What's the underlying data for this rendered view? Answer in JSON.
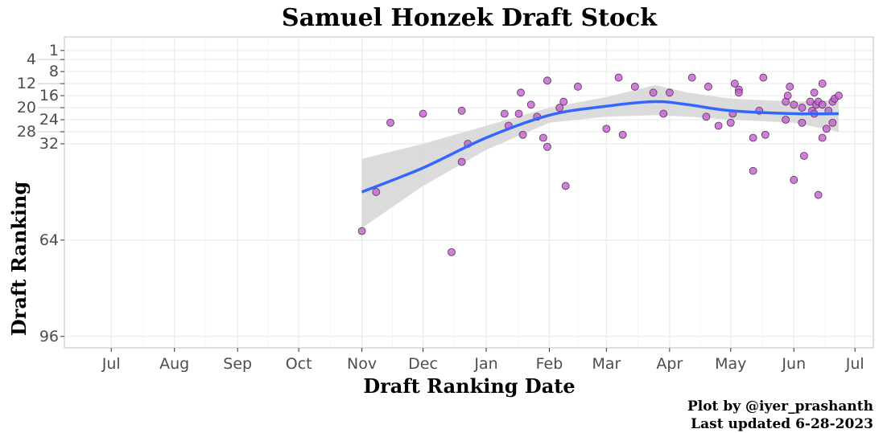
{
  "chart_data": {
    "type": "scatter",
    "title": "Samuel Honzek Draft Stock",
    "xlabel": "Draft Ranking Date",
    "ylabel": "Draft Ranking",
    "caption": [
      "Plot by @iyer_prashanth",
      "Last updated 6-28-2023"
    ],
    "x_ticks": [
      {
        "date": "2022-07-01",
        "label": "Jul"
      },
      {
        "date": "2022-08-01",
        "label": "Aug"
      },
      {
        "date": "2022-09-01",
        "label": "Sep"
      },
      {
        "date": "2022-10-01",
        "label": "Oct"
      },
      {
        "date": "2022-11-01",
        "label": "Nov"
      },
      {
        "date": "2022-12-01",
        "label": "Dec"
      },
      {
        "date": "2023-01-01",
        "label": "Jan"
      },
      {
        "date": "2023-02-01",
        "label": "Feb"
      },
      {
        "date": "2023-03-01",
        "label": "Mar"
      },
      {
        "date": "2023-04-01",
        "label": "Apr"
      },
      {
        "date": "2023-05-01",
        "label": "May"
      },
      {
        "date": "2023-06-01",
        "label": "Jun"
      },
      {
        "date": "2023-07-01",
        "label": "Jul"
      }
    ],
    "y_ticks": [
      1,
      4,
      8,
      12,
      16,
      20,
      24,
      28,
      32,
      64,
      96
    ],
    "xlim": [
      "2022-06-08",
      "2023-07-10"
    ],
    "ylim": [
      -3.5,
      99.8
    ],
    "y_reversed": true,
    "grid": true,
    "colors": {
      "points": "#c061cb",
      "point_edge": "#5a2a5f",
      "smooth": "#3366ff",
      "band": "#d9d9d9",
      "grid": "#ebebeb"
    },
    "points": [
      [
        "2022-11-01",
        61
      ],
      [
        "2022-11-08",
        48
      ],
      [
        "2022-11-15",
        25
      ],
      [
        "2022-12-01",
        22
      ],
      [
        "2022-12-20",
        21
      ],
      [
        "2022-12-20",
        38
      ],
      [
        "2022-12-15",
        68
      ],
      [
        "2022-12-23",
        32
      ],
      [
        "2023-01-10",
        22
      ],
      [
        "2023-01-12",
        26
      ],
      [
        "2023-01-17",
        22
      ],
      [
        "2023-01-18",
        15
      ],
      [
        "2023-01-19",
        29
      ],
      [
        "2023-01-23",
        19
      ],
      [
        "2023-01-26",
        23
      ],
      [
        "2023-01-29",
        30
      ],
      [
        "2023-01-31",
        33
      ],
      [
        "2023-01-31",
        11
      ],
      [
        "2023-02-06",
        20
      ],
      [
        "2023-02-08",
        18
      ],
      [
        "2023-02-09",
        46
      ],
      [
        "2023-02-15",
        13
      ],
      [
        "2023-03-01",
        27
      ],
      [
        "2023-03-07",
        10
      ],
      [
        "2023-03-09",
        29
      ],
      [
        "2023-03-15",
        13
      ],
      [
        "2023-03-24",
        15
      ],
      [
        "2023-03-29",
        22
      ],
      [
        "2023-04-01",
        15
      ],
      [
        "2023-04-12",
        10
      ],
      [
        "2023-04-20",
        13
      ],
      [
        "2023-04-19",
        23
      ],
      [
        "2023-04-25",
        26
      ],
      [
        "2023-05-01",
        25
      ],
      [
        "2023-05-02",
        22
      ],
      [
        "2023-05-03",
        12
      ],
      [
        "2023-05-05",
        14
      ],
      [
        "2023-05-05",
        15
      ],
      [
        "2023-05-12",
        41
      ],
      [
        "2023-05-12",
        30
      ],
      [
        "2023-05-15",
        21
      ],
      [
        "2023-05-17",
        10
      ],
      [
        "2023-05-18",
        29
      ],
      [
        "2023-05-28",
        24
      ],
      [
        "2023-05-28",
        18
      ],
      [
        "2023-05-29",
        16
      ],
      [
        "2023-05-30",
        13
      ],
      [
        "2023-06-01",
        44
      ],
      [
        "2023-06-01",
        19
      ],
      [
        "2023-06-05",
        20
      ],
      [
        "2023-06-05",
        25
      ],
      [
        "2023-06-06",
        36
      ],
      [
        "2023-06-09",
        18
      ],
      [
        "2023-06-10",
        21
      ],
      [
        "2023-06-11",
        15
      ],
      [
        "2023-06-11",
        22
      ],
      [
        "2023-06-12",
        19
      ],
      [
        "2023-06-13",
        18
      ],
      [
        "2023-06-13",
        49
      ],
      [
        "2023-06-15",
        12
      ],
      [
        "2023-06-15",
        19
      ],
      [
        "2023-06-15",
        30
      ],
      [
        "2023-06-17",
        27
      ],
      [
        "2023-06-18",
        21
      ],
      [
        "2023-06-20",
        18
      ],
      [
        "2023-06-20",
        25
      ],
      [
        "2023-06-21",
        17
      ],
      [
        "2023-06-23",
        16
      ]
    ],
    "smooth": [
      {
        "date": "2022-11-01",
        "y": 48,
        "lo": 37,
        "hi": 60
      },
      {
        "date": "2022-12-01",
        "y": 40,
        "lo": 32,
        "hi": 46
      },
      {
        "date": "2023-01-01",
        "y": 30,
        "lo": 26,
        "hi": 34
      },
      {
        "date": "2023-02-01",
        "y": 22.5,
        "lo": 20,
        "hi": 25
      },
      {
        "date": "2023-03-01",
        "y": 19.5,
        "lo": 16.5,
        "hi": 23
      },
      {
        "date": "2023-03-25",
        "y": 18,
        "lo": 12.5,
        "hi": 22.5
      },
      {
        "date": "2023-04-10",
        "y": 19,
        "lo": 15,
        "hi": 23
      },
      {
        "date": "2023-05-01",
        "y": 21,
        "lo": 17,
        "hi": 24
      },
      {
        "date": "2023-06-01",
        "y": 22,
        "lo": 18,
        "hi": 25
      },
      {
        "date": "2023-06-23",
        "y": 22,
        "lo": 17.5,
        "hi": 28
      }
    ]
  }
}
